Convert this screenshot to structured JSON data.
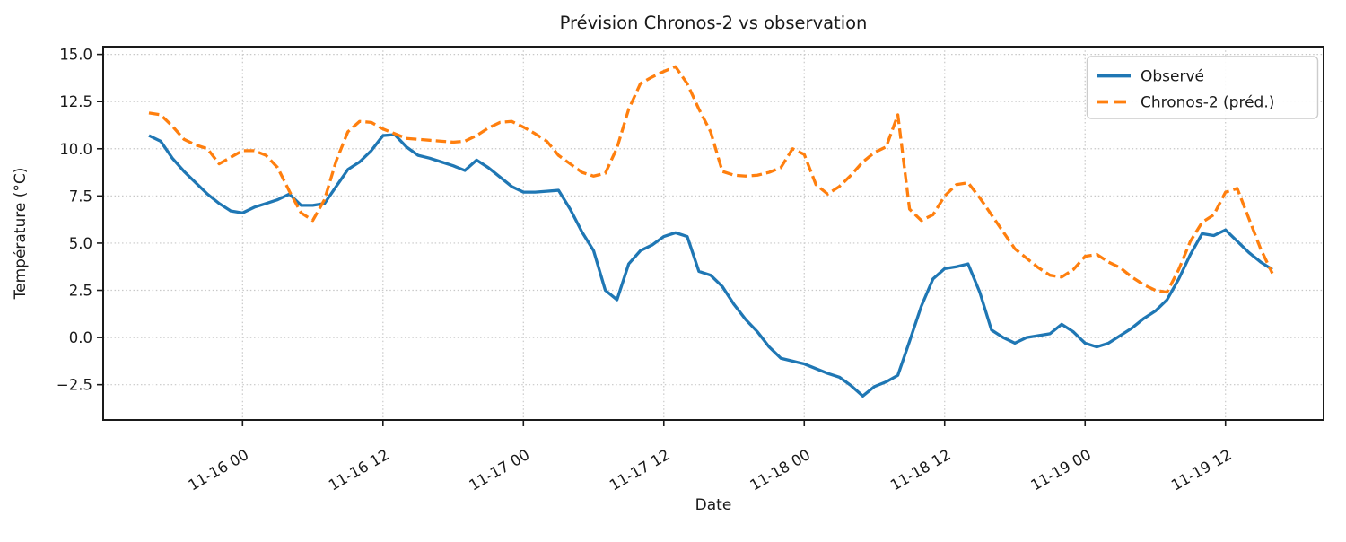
{
  "figure": {
    "background_color": "#ffffff",
    "text_color": "#1a1a1a"
  },
  "chart_data": {
    "type": "line",
    "title": "Prévision Chronos-2 vs observation",
    "xlabel": "Date",
    "ylabel": "Température (°C)",
    "grid": true,
    "grid_style": "dotted",
    "legend_position": "upper right",
    "x_start": "11-15 16:00",
    "x_end": "11-19 16:00",
    "x_step_hours": 1,
    "xlim_hours": [
      -3.91,
      100.38
    ],
    "ylim": [
      -4.37,
      15.41
    ],
    "x_ticks": [
      {
        "hour": 8,
        "label": "11-16 00"
      },
      {
        "hour": 20,
        "label": "11-16 12"
      },
      {
        "hour": 32,
        "label": "11-17 00"
      },
      {
        "hour": 44,
        "label": "11-17 12"
      },
      {
        "hour": 56,
        "label": "11-18 00"
      },
      {
        "hour": 68,
        "label": "11-18 12"
      },
      {
        "hour": 80,
        "label": "11-19 00"
      },
      {
        "hour": 92,
        "label": "11-19 12"
      }
    ],
    "y_ticks": [
      {
        "value": 15.0,
        "label": "15.0"
      },
      {
        "value": 12.5,
        "label": "12.5"
      },
      {
        "value": 10.0,
        "label": "10.0"
      },
      {
        "value": 7.5,
        "label": "7.5"
      },
      {
        "value": 5.0,
        "label": "5.0"
      },
      {
        "value": 2.5,
        "label": "2.5"
      },
      {
        "value": 0.0,
        "label": "0.0"
      },
      {
        "value": -2.5,
        "label": "−2.5"
      }
    ],
    "series": [
      {
        "key": "observed",
        "name": "Observé",
        "color": "#1f77b4",
        "style": "solid",
        "values": [
          10.7,
          10.4,
          9.5,
          8.8,
          8.2,
          7.6,
          7.1,
          6.7,
          6.6,
          6.9,
          7.1,
          7.3,
          7.6,
          7.0,
          7.0,
          7.1,
          8.0,
          8.9,
          9.3,
          9.9,
          10.7,
          10.75,
          10.1,
          9.65,
          9.5,
          9.3,
          9.1,
          8.85,
          9.4,
          9.0,
          8.5,
          8.0,
          7.7,
          7.7,
          7.75,
          7.8,
          6.8,
          5.6,
          4.6,
          2.5,
          2.0,
          3.9,
          4.6,
          4.9,
          5.35,
          5.55,
          5.35,
          3.5,
          3.3,
          2.7,
          1.75,
          0.95,
          0.3,
          -0.5,
          -1.1,
          -1.25,
          -1.4,
          -1.65,
          -1.9,
          -2.1,
          -2.55,
          -3.1,
          -2.6,
          -2.35,
          -2.0,
          -0.2,
          1.65,
          3.1,
          3.65,
          3.75,
          3.9,
          2.4,
          0.4,
          0.0,
          -0.3,
          0.0,
          0.1,
          0.2,
          0.7,
          0.3,
          -0.3,
          -0.5,
          -0.3,
          0.1,
          0.5,
          1.0,
          1.4,
          2.0,
          3.1,
          4.4,
          5.5,
          5.4,
          5.7,
          5.1,
          4.5,
          4.0,
          3.6
        ]
      },
      {
        "key": "predicted",
        "name": "Chronos-2 (préd.)",
        "color": "#ff7f0e",
        "style": "dashed",
        "values": [
          11.9,
          11.8,
          11.2,
          10.5,
          10.2,
          10.0,
          9.2,
          9.55,
          9.9,
          9.9,
          9.65,
          9.0,
          7.75,
          6.6,
          6.2,
          7.3,
          9.35,
          10.9,
          11.45,
          11.4,
          11.05,
          10.8,
          10.55,
          10.5,
          10.45,
          10.4,
          10.35,
          10.4,
          10.7,
          11.1,
          11.4,
          11.45,
          11.15,
          10.8,
          10.4,
          9.65,
          9.2,
          8.75,
          8.55,
          8.7,
          10.05,
          12.1,
          13.45,
          13.8,
          14.1,
          14.35,
          13.45,
          12.1,
          10.9,
          8.8,
          8.6,
          8.55,
          8.6,
          8.75,
          9.0,
          10.0,
          9.7,
          8.1,
          7.6,
          8.0,
          8.6,
          9.3,
          9.8,
          10.1,
          11.8,
          6.8,
          6.2,
          6.5,
          7.5,
          8.1,
          8.2,
          7.4,
          6.5,
          5.6,
          4.7,
          4.2,
          3.7,
          3.3,
          3.2,
          3.6,
          4.3,
          4.4,
          4.0,
          3.7,
          3.2,
          2.8,
          2.5,
          2.4,
          3.6,
          5.1,
          6.1,
          6.5,
          7.7,
          7.9,
          6.3,
          4.7,
          3.4
        ]
      }
    ]
  }
}
